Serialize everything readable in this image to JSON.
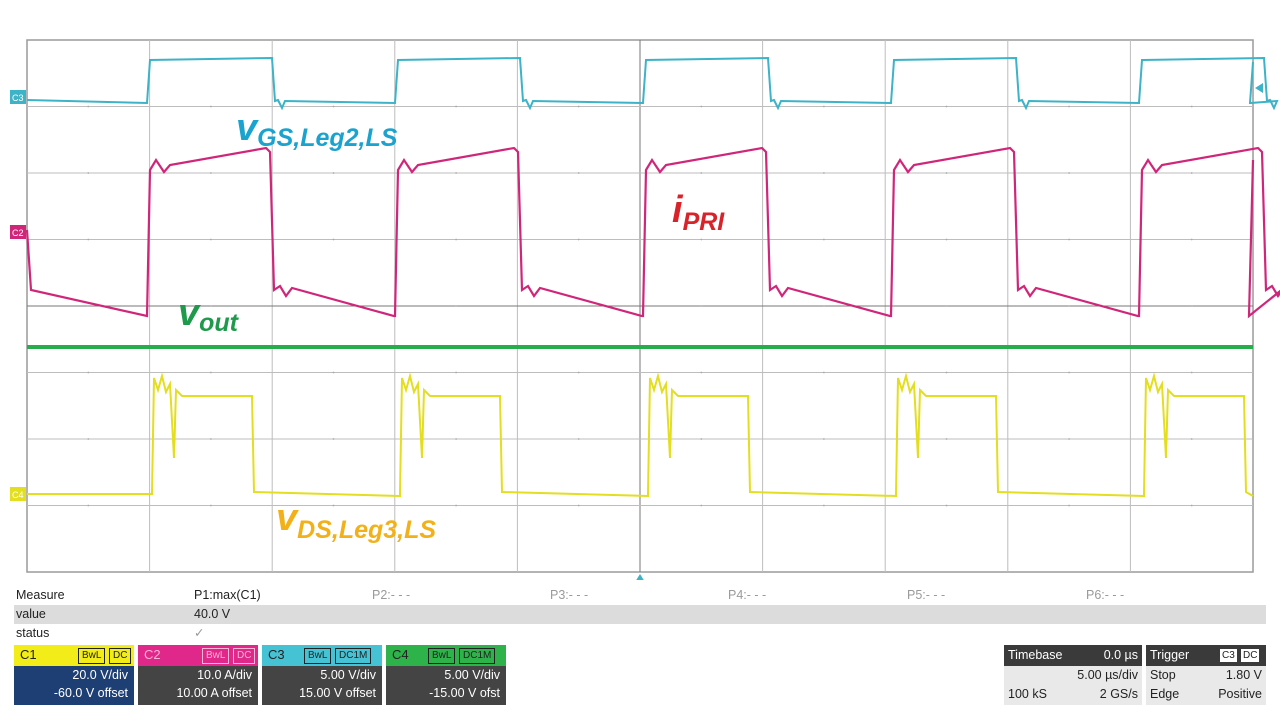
{
  "traces": {
    "colors": {
      "c1": "#e3de1f",
      "c2": "#d0267a",
      "c3": "#3db3c7",
      "c4": "#27ad4b"
    },
    "labels": {
      "vgs": {
        "main": "v",
        "sub": "GS,Leg2,LS",
        "color": "#1aa3cf"
      },
      "ipri": {
        "main": "i",
        "sub": "PRI",
        "color": "#d8232a"
      },
      "vout": {
        "main": "v",
        "sub": "out",
        "color": "#1f9a4c"
      },
      "vds": {
        "main": "v",
        "sub": "DS,Leg3,LS",
        "color": "#f2b118"
      }
    },
    "markers": {
      "c1": "C4",
      "c2": "C2",
      "c3": "C3"
    }
  },
  "measure": {
    "header": "Measure",
    "value_label": "value",
    "status_label": "status",
    "status_mark": "✓",
    "params": [
      {
        "name": "P1:max(C1)",
        "value": "40.0 V"
      },
      {
        "name": "P2:- - -",
        "value": ""
      },
      {
        "name": "P3:- - -",
        "value": ""
      },
      {
        "name": "P4:- - -",
        "value": ""
      },
      {
        "name": "P5:- - -",
        "value": ""
      },
      {
        "name": "P6:- - -",
        "value": ""
      }
    ]
  },
  "channels": [
    {
      "name": "C1",
      "tags": [
        "BwL",
        "DC"
      ],
      "vdiv": "20.0 V/div",
      "offset": "-60.0 V offset",
      "color": "#f2ec19"
    },
    {
      "name": "C2",
      "tags": [
        "BwL",
        "DC"
      ],
      "vdiv": "10.0 A/div",
      "offset": "10.00 A offset",
      "color": "#e0278a"
    },
    {
      "name": "C3",
      "tags": [
        "BwL",
        "DC1M"
      ],
      "vdiv": "5.00 V/div",
      "offset": "15.00 V offset",
      "color": "#45c3d4"
    },
    {
      "name": "C4",
      "tags": [
        "BwL",
        "DC1M"
      ],
      "vdiv": "5.00 V/div",
      "offset": "-15.00 V ofst",
      "color": "#2eb34a"
    }
  ],
  "timebase": {
    "title": "Timebase",
    "delay": "0.0 µs",
    "tdiv": "5.00 µs/div",
    "samples": "100 kS",
    "rate": "2 GS/s"
  },
  "trigger": {
    "title": "Trigger",
    "source": "C3",
    "coupling": "DC",
    "mode": "Stop",
    "level": "1.80 V",
    "type": "Edge",
    "slope": "Positive"
  }
}
